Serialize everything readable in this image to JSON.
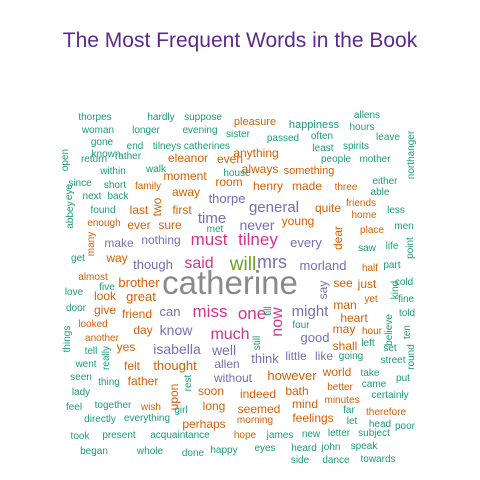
{
  "chart_data": {
    "type": "wordcloud",
    "title": "The Most Frequent Words in the Book",
    "palette": {
      "gray": "#8a8a8a",
      "purple": "#7570b3",
      "magenta": "#d6338a",
      "green": "#66a61e",
      "orange": "#d95f02",
      "teal": "#1b9e77"
    },
    "words": [
      {
        "text": "catherine",
        "color": "gray"
      },
      {
        "text": "will",
        "color": "green"
      },
      {
        "text": "mrs",
        "color": "purple"
      },
      {
        "text": "must",
        "color": "magenta"
      },
      {
        "text": "tilney",
        "color": "magenta"
      },
      {
        "text": "said",
        "color": "magenta"
      },
      {
        "text": "miss",
        "color": "magenta"
      },
      {
        "text": "one",
        "color": "magenta"
      },
      {
        "text": "much",
        "color": "magenta"
      },
      {
        "text": "now",
        "color": "magenta"
      },
      {
        "text": "might",
        "color": "purple"
      },
      {
        "text": "time",
        "color": "purple"
      },
      {
        "text": "general",
        "color": "purple"
      },
      {
        "text": "never",
        "color": "purple"
      },
      {
        "text": "every",
        "color": "purple"
      },
      {
        "text": "morland",
        "color": "purple"
      },
      {
        "text": "though",
        "color": "purple"
      },
      {
        "text": "can",
        "color": "purple"
      },
      {
        "text": "know",
        "color": "purple"
      },
      {
        "text": "isabella",
        "color": "purple"
      },
      {
        "text": "well",
        "color": "purple"
      },
      {
        "text": "think",
        "color": "purple"
      },
      {
        "text": "good",
        "color": "purple"
      },
      {
        "text": "thorpe",
        "color": "purple"
      },
      {
        "text": "nothing",
        "color": "purple"
      },
      {
        "text": "great",
        "color": "orange"
      },
      {
        "text": "brother",
        "color": "orange"
      },
      {
        "text": "first",
        "color": "orange"
      },
      {
        "text": "sure",
        "color": "orange"
      },
      {
        "text": "ever",
        "color": "orange"
      },
      {
        "text": "young",
        "color": "orange"
      },
      {
        "text": "henry",
        "color": "orange"
      },
      {
        "text": "thought",
        "color": "orange"
      },
      {
        "text": "however",
        "color": "orange"
      },
      {
        "text": "allen",
        "color": "purple"
      },
      {
        "text": "without",
        "color": "purple"
      },
      {
        "text": "indeed",
        "color": "orange"
      },
      {
        "text": "seemed",
        "color": "orange"
      },
      {
        "text": "long",
        "color": "orange"
      },
      {
        "text": "bath",
        "color": "orange"
      },
      {
        "text": "say",
        "color": "purple"
      },
      {
        "text": "see",
        "color": "orange"
      },
      {
        "text": "just",
        "color": "orange"
      },
      {
        "text": "man",
        "color": "orange"
      },
      {
        "text": "heart",
        "color": "orange"
      },
      {
        "text": "shall",
        "color": "orange"
      },
      {
        "text": "may",
        "color": "orange"
      },
      {
        "text": "little",
        "color": "purple"
      },
      {
        "text": "like",
        "color": "purple"
      },
      {
        "text": "make",
        "color": "purple"
      },
      {
        "text": "way",
        "color": "orange"
      },
      {
        "text": "friend",
        "color": "orange"
      },
      {
        "text": "day",
        "color": "orange"
      },
      {
        "text": "yes",
        "color": "orange"
      },
      {
        "text": "father",
        "color": "orange"
      },
      {
        "text": "soon",
        "color": "orange"
      },
      {
        "text": "perhaps",
        "color": "orange"
      },
      {
        "text": "dear",
        "color": "orange"
      },
      {
        "text": "quite",
        "color": "orange"
      },
      {
        "text": "made",
        "color": "orange"
      },
      {
        "text": "always",
        "color": "orange"
      },
      {
        "text": "anything",
        "color": "orange"
      },
      {
        "text": "room",
        "color": "orange"
      },
      {
        "text": "away",
        "color": "orange"
      },
      {
        "text": "moment",
        "color": "orange"
      },
      {
        "text": "last",
        "color": "orange"
      },
      {
        "text": "two",
        "color": "orange"
      },
      {
        "text": "eleanor",
        "color": "orange"
      },
      {
        "text": "even",
        "color": "orange"
      },
      {
        "text": "look",
        "color": "orange"
      },
      {
        "text": "feelings",
        "color": "orange"
      },
      {
        "text": "mind",
        "color": "orange"
      },
      {
        "text": "world",
        "color": "orange"
      },
      {
        "text": "upon",
        "color": "orange"
      },
      {
        "text": "felt",
        "color": "orange"
      },
      {
        "text": "give",
        "color": "orange"
      },
      {
        "text": "something",
        "color": "orange"
      },
      {
        "text": "pleasure",
        "color": "orange"
      },
      {
        "text": "happiness",
        "color": "teal"
      },
      {
        "text": "allens",
        "color": "teal"
      },
      {
        "text": "hours",
        "color": "teal"
      },
      {
        "text": "leave",
        "color": "teal"
      },
      {
        "text": "thorpes",
        "color": "teal"
      },
      {
        "text": "hardly",
        "color": "teal"
      },
      {
        "text": "suppose",
        "color": "teal"
      },
      {
        "text": "woman",
        "color": "teal"
      },
      {
        "text": "longer",
        "color": "teal"
      },
      {
        "text": "evening",
        "color": "teal"
      },
      {
        "text": "sister",
        "color": "teal"
      },
      {
        "text": "passed",
        "color": "teal"
      },
      {
        "text": "often",
        "color": "teal"
      },
      {
        "text": "gone",
        "color": "teal"
      },
      {
        "text": "known",
        "color": "teal"
      },
      {
        "text": "end",
        "color": "teal"
      },
      {
        "text": "tilneys",
        "color": "teal"
      },
      {
        "text": "catherines",
        "color": "teal"
      },
      {
        "text": "least",
        "color": "teal"
      },
      {
        "text": "spirits",
        "color": "teal"
      },
      {
        "text": "northanger",
        "color": "teal"
      },
      {
        "text": "open",
        "color": "teal"
      },
      {
        "text": "return",
        "color": "teal"
      },
      {
        "text": "rather",
        "color": "teal"
      },
      {
        "text": "people",
        "color": "teal"
      },
      {
        "text": "mother",
        "color": "teal"
      },
      {
        "text": "within",
        "color": "teal"
      },
      {
        "text": "walk",
        "color": "teal"
      },
      {
        "text": "house",
        "color": "teal"
      },
      {
        "text": "either",
        "color": "teal"
      },
      {
        "text": "since",
        "color": "teal"
      },
      {
        "text": "short",
        "color": "teal"
      },
      {
        "text": "family",
        "color": "orange"
      },
      {
        "text": "three",
        "color": "orange"
      },
      {
        "text": "able",
        "color": "teal"
      },
      {
        "text": "next",
        "color": "teal"
      },
      {
        "text": "back",
        "color": "teal"
      },
      {
        "text": "friends",
        "color": "orange"
      },
      {
        "text": "found",
        "color": "teal"
      },
      {
        "text": "home",
        "color": "orange"
      },
      {
        "text": "less",
        "color": "teal"
      },
      {
        "text": "abbey",
        "color": "teal"
      },
      {
        "text": "eye",
        "color": "teal"
      },
      {
        "text": "enough",
        "color": "orange"
      },
      {
        "text": "met",
        "color": "teal"
      },
      {
        "text": "place",
        "color": "orange"
      },
      {
        "text": "men",
        "color": "teal"
      },
      {
        "text": "many",
        "color": "orange"
      },
      {
        "text": "point",
        "color": "teal"
      },
      {
        "text": "saw",
        "color": "teal"
      },
      {
        "text": "life",
        "color": "teal"
      },
      {
        "text": "get",
        "color": "teal"
      },
      {
        "text": "half",
        "color": "orange"
      },
      {
        "text": "part",
        "color": "teal"
      },
      {
        "text": "almost",
        "color": "orange"
      },
      {
        "text": "love",
        "color": "teal"
      },
      {
        "text": "five",
        "color": "teal"
      },
      {
        "text": "till",
        "color": "teal"
      },
      {
        "text": "kind",
        "color": "teal"
      },
      {
        "text": "cold",
        "color": "teal"
      },
      {
        "text": "door",
        "color": "teal"
      },
      {
        "text": "fine",
        "color": "teal"
      },
      {
        "text": "yet",
        "color": "orange"
      },
      {
        "text": "told",
        "color": "teal"
      },
      {
        "text": "looked",
        "color": "orange"
      },
      {
        "text": "four",
        "color": "teal"
      },
      {
        "text": "hour",
        "color": "orange"
      },
      {
        "text": "believe",
        "color": "teal"
      },
      {
        "text": "things",
        "color": "teal"
      },
      {
        "text": "another",
        "color": "orange"
      },
      {
        "text": "ten",
        "color": "teal"
      },
      {
        "text": "still",
        "color": "teal"
      },
      {
        "text": "left",
        "color": "teal"
      },
      {
        "text": "tell",
        "color": "teal"
      },
      {
        "text": "really",
        "color": "teal"
      },
      {
        "text": "set",
        "color": "teal"
      },
      {
        "text": "round",
        "color": "teal"
      },
      {
        "text": "going",
        "color": "teal"
      },
      {
        "text": "street",
        "color": "teal"
      },
      {
        "text": "went",
        "color": "teal"
      },
      {
        "text": "take",
        "color": "teal"
      },
      {
        "text": "seen",
        "color": "teal"
      },
      {
        "text": "thing",
        "color": "teal"
      },
      {
        "text": "came",
        "color": "teal"
      },
      {
        "text": "put",
        "color": "teal"
      },
      {
        "text": "better",
        "color": "orange"
      },
      {
        "text": "lady",
        "color": "teal"
      },
      {
        "text": "rest",
        "color": "teal"
      },
      {
        "text": "certainly",
        "color": "teal"
      },
      {
        "text": "feel",
        "color": "teal"
      },
      {
        "text": "together",
        "color": "teal"
      },
      {
        "text": "wish",
        "color": "orange"
      },
      {
        "text": "minutes",
        "color": "orange"
      },
      {
        "text": "far",
        "color": "teal"
      },
      {
        "text": "therefore",
        "color": "orange"
      },
      {
        "text": "directly",
        "color": "teal"
      },
      {
        "text": "everything",
        "color": "teal"
      },
      {
        "text": "girl",
        "color": "teal"
      },
      {
        "text": "morning",
        "color": "orange"
      },
      {
        "text": "let",
        "color": "teal"
      },
      {
        "text": "head",
        "color": "teal"
      },
      {
        "text": "poor",
        "color": "teal"
      },
      {
        "text": "took",
        "color": "teal"
      },
      {
        "text": "present",
        "color": "teal"
      },
      {
        "text": "acquaintance",
        "color": "teal"
      },
      {
        "text": "hope",
        "color": "orange"
      },
      {
        "text": "james",
        "color": "teal"
      },
      {
        "text": "new",
        "color": "teal"
      },
      {
        "text": "letter",
        "color": "teal"
      },
      {
        "text": "subject",
        "color": "teal"
      },
      {
        "text": "began",
        "color": "teal"
      },
      {
        "text": "whole",
        "color": "teal"
      },
      {
        "text": "done",
        "color": "teal"
      },
      {
        "text": "happy",
        "color": "teal"
      },
      {
        "text": "eyes",
        "color": "teal"
      },
      {
        "text": "heard",
        "color": "teal"
      },
      {
        "text": "john",
        "color": "teal"
      },
      {
        "text": "speak",
        "color": "teal"
      },
      {
        "text": "side",
        "color": "teal"
      },
      {
        "text": "dance",
        "color": "teal"
      },
      {
        "text": "towards",
        "color": "teal"
      }
    ]
  }
}
